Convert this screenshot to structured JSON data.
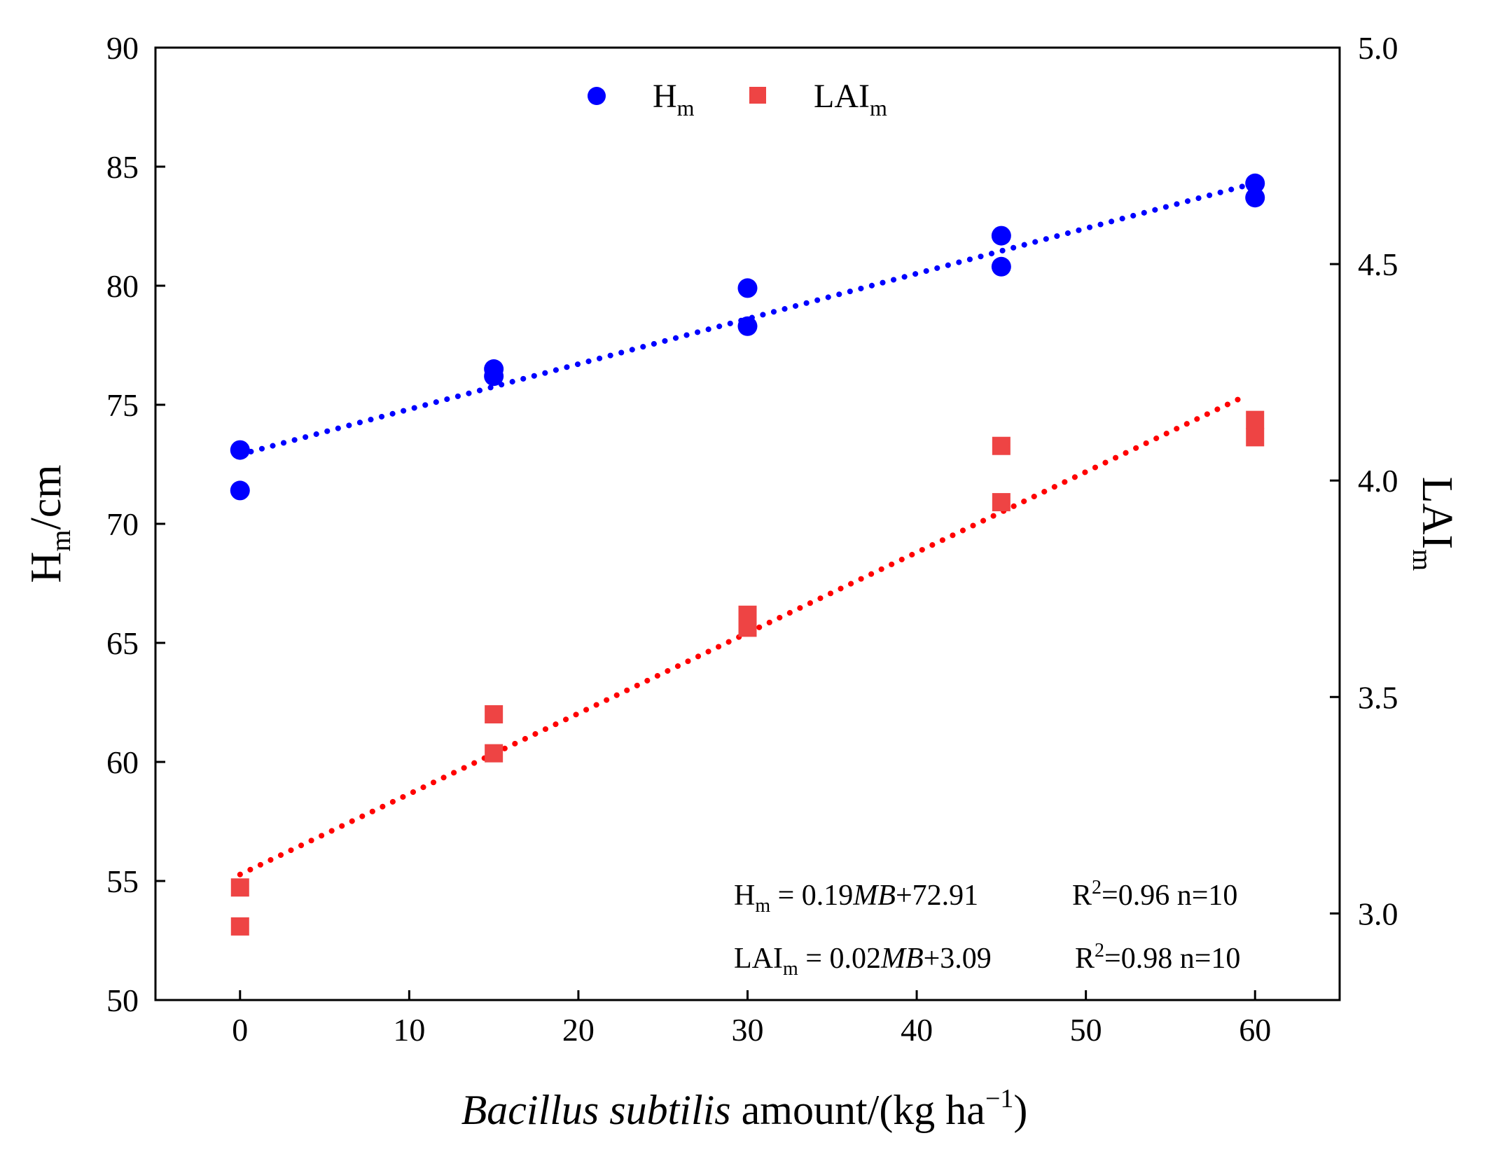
{
  "chart_data": {
    "type": "scatter",
    "x_axis": {
      "label_italic": "Bacillus subtilis",
      "label_rest": " amount/(kg ha",
      "label_sup": "−1",
      "label_close": ")",
      "xlim": [
        -5,
        65
      ],
      "ticks": [
        0,
        10,
        20,
        30,
        40,
        50,
        60
      ]
    },
    "y_left": {
      "label_main": "H",
      "label_sub": "m",
      "label_unit": "/cm",
      "ylim": [
        50,
        90
      ],
      "ticks": [
        50,
        55,
        60,
        65,
        70,
        75,
        80,
        85,
        90
      ]
    },
    "y_right": {
      "label_main": "LAI",
      "label_sub": "m",
      "ylim": [
        2.8,
        5.0
      ],
      "ticks": [
        "3.0",
        "3.5",
        "4.0",
        "4.5",
        "5.0"
      ]
    },
    "series": [
      {
        "name": "Hm",
        "legend_main": "H",
        "legend_sub": "m",
        "axis": "left",
        "marker": "circle",
        "color": "#0000ff",
        "x": [
          0,
          0,
          15,
          15,
          30,
          30,
          45,
          45,
          60,
          60
        ],
        "y": [
          73.1,
          71.4,
          76.5,
          76.2,
          79.9,
          78.3,
          82.1,
          80.8,
          84.3,
          83.7
        ],
        "fit": {
          "slope": 0.19,
          "intercept": 72.91,
          "x_range": [
            0,
            60
          ]
        }
      },
      {
        "name": "LAIm",
        "legend_main": "LAI",
        "legend_sub": "m",
        "axis": "right",
        "marker": "square",
        "color": "#ee4444",
        "fit_color": "#ff0000",
        "x": [
          0,
          0,
          15,
          15,
          30,
          30,
          45,
          45,
          60,
          60
        ],
        "y": [
          3.06,
          2.97,
          3.46,
          3.37,
          3.69,
          3.66,
          4.08,
          3.95,
          4.14,
          4.1
        ],
        "fit": {
          "slope": 0.0186,
          "intercept": 3.09,
          "x_range": [
            0,
            59.5
          ]
        }
      }
    ],
    "annotations": [
      {
        "main": "H",
        "sub": "m",
        "eq_a": " = 0.19",
        "eq_var": "MB",
        "eq_b": "+72.91",
        "r_pre": "R",
        "r_sup": "2",
        "r_post": "=0.96  n=10"
      },
      {
        "main": "LAI",
        "sub": "m",
        "eq_a": " = 0.02",
        "eq_var": "MB",
        "eq_b": "+3.09",
        "r_pre": "R",
        "r_sup": "2",
        "r_post": "=0.98 n=10"
      }
    ]
  }
}
